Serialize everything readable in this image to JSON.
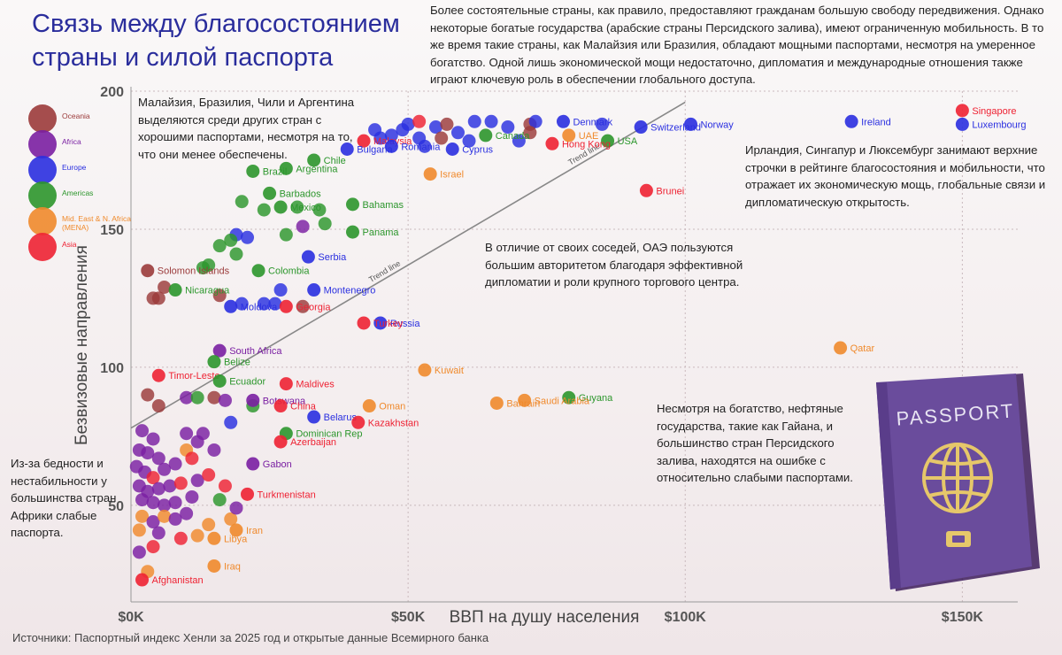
{
  "title": "Связь между благосостоянием страны и силой паспорта",
  "intro": "Более состоятельные страны, как правило, предоставляют гражданам большую свободу передвижения. Однако некоторые богатые государства (арабские страны Персидского залива), имеют ограниченную мобильность. В то же время такие страны, как Малайзия или Бразилия, обладают мощными паспортами, несмотря на умеренное богатство. Одной лишь экономической мощи недостаточно, дипломатия и международные отношения также играют ключевую роль в обеспечении глобального доступа.",
  "notes": {
    "malaysia": "Малайзия, Бразилия, Чили и Аргентина выделяются среди других стран с хорошими паспортами, несмотря на то, что они менее обеспечены.",
    "ireland": "Ирландия, Сингапур и Люксембург занимают верхние строчки в рейтинге благосостояния и мобильности, что отражает их экономическую мощь, глобальные связи и дипломатическую открытость.",
    "uae": "В отличие от своих соседей, ОАЭ пользуются большим авторитетом благодаря эффективной дипломатии и роли крупного торгового центра.",
    "gulf": "Несмотря на богатство, нефтяные государства, такие как Гайана, и большинство стран Персидского залива, находятся на ошибке с относительно слабыми паспортами.",
    "africa": "Из-за бедности и нестабильности у большинства стран Африки слабые паспорта."
  },
  "source": "Источники: Паспортный индекс Хенли за 2025 год и открытые данные Всемирного банка",
  "passport_label": "PASSPORT",
  "colors": {
    "Oceania": "#9b3b3b",
    "Africa": "#7a1fa2",
    "Europe": "#2a2fe0",
    "Americas": "#2c962c",
    "MENA": "#f08a2c",
    "Asia": "#ee2233",
    "trend": "#888888"
  },
  "legend": [
    {
      "key": "Oceania",
      "label": "Oceania"
    },
    {
      "key": "Africa",
      "label": "Africa"
    },
    {
      "key": "Europe",
      "label": "Europe"
    },
    {
      "key": "Americas",
      "label": "Americas"
    },
    {
      "key": "MENA",
      "label": "Mid. East & N. Africa (MENA)"
    },
    {
      "key": "Asia",
      "label": "Asia"
    }
  ],
  "chart_data": {
    "type": "scatter",
    "xlabel": "ВВП на душу населения",
    "ylabel": "Безвизовые направления",
    "xlim": [
      0,
      160000
    ],
    "ylim": [
      15,
      200
    ],
    "x_ticks": [
      {
        "v": 0,
        "label": "$0K"
      },
      {
        "v": 50000,
        "label": "$50K"
      },
      {
        "v": 100000,
        "label": "$100K"
      },
      {
        "v": 150000,
        "label": "$150K"
      }
    ],
    "y_ticks": [
      {
        "v": 50,
        "label": "50"
      },
      {
        "v": 100,
        "label": "100"
      },
      {
        "v": 150,
        "label": "150"
      },
      {
        "v": 200,
        "label": "200"
      }
    ],
    "trend_label": "Trend line",
    "trend": [
      [
        0,
        78
      ],
      [
        100000,
        196
      ]
    ],
    "labeled_points": [
      {
        "name": "Singapore",
        "x": 150000,
        "y": 193,
        "region": "Asia"
      },
      {
        "name": "Luxembourg",
        "x": 150000,
        "y": 188,
        "region": "Europe"
      },
      {
        "name": "Ireland",
        "x": 130000,
        "y": 189,
        "region": "Europe"
      },
      {
        "name": "Norway",
        "x": 101000,
        "y": 188,
        "region": "Europe"
      },
      {
        "name": "Switzerland",
        "x": 92000,
        "y": 187,
        "region": "Europe"
      },
      {
        "name": "Denmark",
        "x": 78000,
        "y": 189,
        "region": "Europe"
      },
      {
        "name": "USA",
        "x": 86000,
        "y": 182,
        "region": "Americas"
      },
      {
        "name": "Hong Kong",
        "x": 76000,
        "y": 181,
        "region": "Asia"
      },
      {
        "name": "UAE",
        "x": 79000,
        "y": 184,
        "region": "MENA"
      },
      {
        "name": "Canada",
        "x": 64000,
        "y": 184,
        "region": "Americas"
      },
      {
        "name": "Cyprus",
        "x": 58000,
        "y": 179,
        "region": "Europe"
      },
      {
        "name": "Israel",
        "x": 54000,
        "y": 170,
        "region": "MENA"
      },
      {
        "name": "Brunei",
        "x": 93000,
        "y": 164,
        "region": "Asia"
      },
      {
        "name": "Malaysia",
        "x": 42000,
        "y": 182,
        "region": "Asia"
      },
      {
        "name": "Romania",
        "x": 47000,
        "y": 180,
        "region": "Europe"
      },
      {
        "name": "Bulgaria",
        "x": 39000,
        "y": 179,
        "region": "Europe"
      },
      {
        "name": "Chile",
        "x": 33000,
        "y": 175,
        "region": "Americas"
      },
      {
        "name": "Brazil",
        "x": 22000,
        "y": 171,
        "region": "Americas"
      },
      {
        "name": "Argentina",
        "x": 28000,
        "y": 172,
        "region": "Americas"
      },
      {
        "name": "Barbados",
        "x": 25000,
        "y": 163,
        "region": "Americas"
      },
      {
        "name": "Mexico",
        "x": 27000,
        "y": 158,
        "region": "Americas"
      },
      {
        "name": "Bahamas",
        "x": 40000,
        "y": 159,
        "region": "Americas"
      },
      {
        "name": "Panama",
        "x": 40000,
        "y": 149,
        "region": "Americas"
      },
      {
        "name": "Serbia",
        "x": 32000,
        "y": 140,
        "region": "Europe"
      },
      {
        "name": "Colombia",
        "x": 23000,
        "y": 135,
        "region": "Americas"
      },
      {
        "name": "Solomon Islands",
        "x": 3000,
        "y": 135,
        "region": "Oceania"
      },
      {
        "name": "Nicaragua",
        "x": 8000,
        "y": 128,
        "region": "Americas"
      },
      {
        "name": "Montenegro",
        "x": 33000,
        "y": 128,
        "region": "Europe"
      },
      {
        "name": "Moldova",
        "x": 18000,
        "y": 122,
        "region": "Europe"
      },
      {
        "name": "Georgia",
        "x": 28000,
        "y": 122,
        "region": "Asia"
      },
      {
        "name": "Russia",
        "x": 45000,
        "y": 116,
        "region": "Europe"
      },
      {
        "name": "Turkey",
        "x": 42000,
        "y": 116,
        "region": "Asia"
      },
      {
        "name": "Qatar",
        "x": 128000,
        "y": 107,
        "region": "MENA"
      },
      {
        "name": "South Africa",
        "x": 16000,
        "y": 106,
        "region": "Africa"
      },
      {
        "name": "Belize",
        "x": 15000,
        "y": 102,
        "region": "Americas"
      },
      {
        "name": "Kuwait",
        "x": 53000,
        "y": 99,
        "region": "MENA"
      },
      {
        "name": "Timor-Leste",
        "x": 5000,
        "y": 97,
        "region": "Asia"
      },
      {
        "name": "Ecuador",
        "x": 16000,
        "y": 95,
        "region": "Americas"
      },
      {
        "name": "Maldives",
        "x": 28000,
        "y": 94,
        "region": "Asia"
      },
      {
        "name": "Botswana",
        "x": 22000,
        "y": 88,
        "region": "Africa"
      },
      {
        "name": "China",
        "x": 27000,
        "y": 86,
        "region": "Asia"
      },
      {
        "name": "Oman",
        "x": 43000,
        "y": 86,
        "region": "MENA"
      },
      {
        "name": "Guyana",
        "x": 79000,
        "y": 89,
        "region": "Americas"
      },
      {
        "name": "Saudi Arabia",
        "x": 71000,
        "y": 88,
        "region": "MENA"
      },
      {
        "name": "Bahrain",
        "x": 66000,
        "y": 87,
        "region": "MENA"
      },
      {
        "name": "Belarus",
        "x": 33000,
        "y": 82,
        "region": "Europe"
      },
      {
        "name": "Kazakhstan",
        "x": 41000,
        "y": 80,
        "region": "Asia"
      },
      {
        "name": "Dominican Rep",
        "x": 28000,
        "y": 76,
        "region": "Americas"
      },
      {
        "name": "Azerbaijan",
        "x": 27000,
        "y": 73,
        "region": "Asia"
      },
      {
        "name": "Gabon",
        "x": 22000,
        "y": 65,
        "region": "Africa"
      },
      {
        "name": "Turkmenistan",
        "x": 21000,
        "y": 54,
        "region": "Asia"
      },
      {
        "name": "Iran",
        "x": 19000,
        "y": 41,
        "region": "MENA"
      },
      {
        "name": "Libya",
        "x": 15000,
        "y": 38,
        "region": "MENA"
      },
      {
        "name": "Iraq",
        "x": 15000,
        "y": 28,
        "region": "MENA"
      },
      {
        "name": "Afghanistan",
        "x": 2000,
        "y": 23,
        "region": "Asia"
      }
    ],
    "other_points": [
      {
        "x": 44000,
        "y": 186,
        "region": "Europe"
      },
      {
        "x": 47000,
        "y": 184,
        "region": "Europe"
      },
      {
        "x": 49000,
        "y": 186,
        "region": "Europe"
      },
      {
        "x": 50000,
        "y": 188,
        "region": "Europe"
      },
      {
        "x": 52000,
        "y": 189,
        "region": "Asia"
      },
      {
        "x": 55000,
        "y": 187,
        "region": "Europe"
      },
      {
        "x": 57000,
        "y": 188,
        "region": "Oceania"
      },
      {
        "x": 59000,
        "y": 185,
        "region": "Europe"
      },
      {
        "x": 62000,
        "y": 189,
        "region": "Europe"
      },
      {
        "x": 65000,
        "y": 189,
        "region": "Europe"
      },
      {
        "x": 68000,
        "y": 187,
        "region": "Europe"
      },
      {
        "x": 72000,
        "y": 188,
        "region": "Oceania"
      },
      {
        "x": 73000,
        "y": 189,
        "region": "Europe"
      },
      {
        "x": 85000,
        "y": 188,
        "region": "Europe"
      },
      {
        "x": 56000,
        "y": 183,
        "region": "Oceania"
      },
      {
        "x": 61000,
        "y": 182,
        "region": "Europe"
      },
      {
        "x": 70000,
        "y": 182,
        "region": "Europe"
      },
      {
        "x": 53000,
        "y": 180,
        "region": "Europe"
      },
      {
        "x": 52000,
        "y": 183,
        "region": "Europe"
      },
      {
        "x": 45000,
        "y": 183,
        "region": "Europe"
      },
      {
        "x": 72000,
        "y": 185,
        "region": "Oceania"
      },
      {
        "x": 20000,
        "y": 160,
        "region": "Americas"
      },
      {
        "x": 24000,
        "y": 157,
        "region": "Americas"
      },
      {
        "x": 30000,
        "y": 158,
        "region": "Americas"
      },
      {
        "x": 34000,
        "y": 157,
        "region": "Americas"
      },
      {
        "x": 35000,
        "y": 152,
        "region": "Americas"
      },
      {
        "x": 31000,
        "y": 151,
        "region": "Africa"
      },
      {
        "x": 28000,
        "y": 148,
        "region": "Americas"
      },
      {
        "x": 19000,
        "y": 148,
        "region": "Europe"
      },
      {
        "x": 21000,
        "y": 147,
        "region": "Europe"
      },
      {
        "x": 18000,
        "y": 146,
        "region": "Americas"
      },
      {
        "x": 16000,
        "y": 144,
        "region": "Americas"
      },
      {
        "x": 19000,
        "y": 141,
        "region": "Americas"
      },
      {
        "x": 14000,
        "y": 137,
        "region": "Americas"
      },
      {
        "x": 13000,
        "y": 136,
        "region": "Americas"
      },
      {
        "x": 6000,
        "y": 129,
        "region": "Oceania"
      },
      {
        "x": 4000,
        "y": 125,
        "region": "Oceania"
      },
      {
        "x": 5000,
        "y": 125,
        "region": "Oceania"
      },
      {
        "x": 16000,
        "y": 126,
        "region": "Oceania"
      },
      {
        "x": 20000,
        "y": 123,
        "region": "Europe"
      },
      {
        "x": 24000,
        "y": 123,
        "region": "Europe"
      },
      {
        "x": 26000,
        "y": 123,
        "region": "Europe"
      },
      {
        "x": 31000,
        "y": 122,
        "region": "Oceania"
      },
      {
        "x": 27000,
        "y": 128,
        "region": "Europe"
      },
      {
        "x": 3000,
        "y": 90,
        "region": "Oceania"
      },
      {
        "x": 5000,
        "y": 86,
        "region": "Oceania"
      },
      {
        "x": 10000,
        "y": 89,
        "region": "Africa"
      },
      {
        "x": 12000,
        "y": 89,
        "region": "Americas"
      },
      {
        "x": 15000,
        "y": 89,
        "region": "Oceania"
      },
      {
        "x": 17000,
        "y": 88,
        "region": "Africa"
      },
      {
        "x": 22000,
        "y": 86,
        "region": "Americas"
      },
      {
        "x": 18000,
        "y": 80,
        "region": "Europe"
      },
      {
        "x": 13000,
        "y": 76,
        "region": "Africa"
      },
      {
        "x": 10000,
        "y": 76,
        "region": "Africa"
      },
      {
        "x": 12000,
        "y": 73,
        "region": "Africa"
      },
      {
        "x": 15000,
        "y": 70,
        "region": "Africa"
      },
      {
        "x": 2000,
        "y": 77,
        "region": "Africa"
      },
      {
        "x": 4000,
        "y": 74,
        "region": "Africa"
      },
      {
        "x": 1500,
        "y": 70,
        "region": "Africa"
      },
      {
        "x": 3000,
        "y": 69,
        "region": "Africa"
      },
      {
        "x": 5000,
        "y": 67,
        "region": "Africa"
      },
      {
        "x": 1000,
        "y": 64,
        "region": "Africa"
      },
      {
        "x": 2500,
        "y": 62,
        "region": "Africa"
      },
      {
        "x": 4000,
        "y": 60,
        "region": "Asia"
      },
      {
        "x": 6000,
        "y": 63,
        "region": "Africa"
      },
      {
        "x": 8000,
        "y": 65,
        "region": "Africa"
      },
      {
        "x": 10000,
        "y": 70,
        "region": "MENA"
      },
      {
        "x": 11000,
        "y": 67,
        "region": "Asia"
      },
      {
        "x": 1500,
        "y": 57,
        "region": "Africa"
      },
      {
        "x": 3000,
        "y": 55,
        "region": "Africa"
      },
      {
        "x": 5000,
        "y": 56,
        "region": "Africa"
      },
      {
        "x": 7000,
        "y": 57,
        "region": "Africa"
      },
      {
        "x": 9000,
        "y": 58,
        "region": "Asia"
      },
      {
        "x": 12000,
        "y": 59,
        "region": "Africa"
      },
      {
        "x": 14000,
        "y": 61,
        "region": "Asia"
      },
      {
        "x": 17000,
        "y": 57,
        "region": "Asia"
      },
      {
        "x": 2000,
        "y": 52,
        "region": "Africa"
      },
      {
        "x": 4000,
        "y": 51,
        "region": "Africa"
      },
      {
        "x": 6000,
        "y": 50,
        "region": "Africa"
      },
      {
        "x": 8000,
        "y": 51,
        "region": "Africa"
      },
      {
        "x": 11000,
        "y": 53,
        "region": "Africa"
      },
      {
        "x": 16000,
        "y": 52,
        "region": "Americas"
      },
      {
        "x": 2000,
        "y": 46,
        "region": "MENA"
      },
      {
        "x": 4000,
        "y": 44,
        "region": "Africa"
      },
      {
        "x": 6000,
        "y": 46,
        "region": "MENA"
      },
      {
        "x": 8000,
        "y": 45,
        "region": "Africa"
      },
      {
        "x": 10000,
        "y": 47,
        "region": "Africa"
      },
      {
        "x": 1500,
        "y": 41,
        "region": "MENA"
      },
      {
        "x": 5000,
        "y": 40,
        "region": "Africa"
      },
      {
        "x": 9000,
        "y": 38,
        "region": "Asia"
      },
      {
        "x": 12000,
        "y": 39,
        "region": "MENA"
      },
      {
        "x": 14000,
        "y": 43,
        "region": "MENA"
      },
      {
        "x": 1500,
        "y": 33,
        "region": "Africa"
      },
      {
        "x": 4000,
        "y": 35,
        "region": "Asia"
      },
      {
        "x": 3000,
        "y": 26,
        "region": "MENA"
      },
      {
        "x": 18000,
        "y": 45,
        "region": "MENA"
      },
      {
        "x": 19000,
        "y": 49,
        "region": "Africa"
      }
    ]
  }
}
